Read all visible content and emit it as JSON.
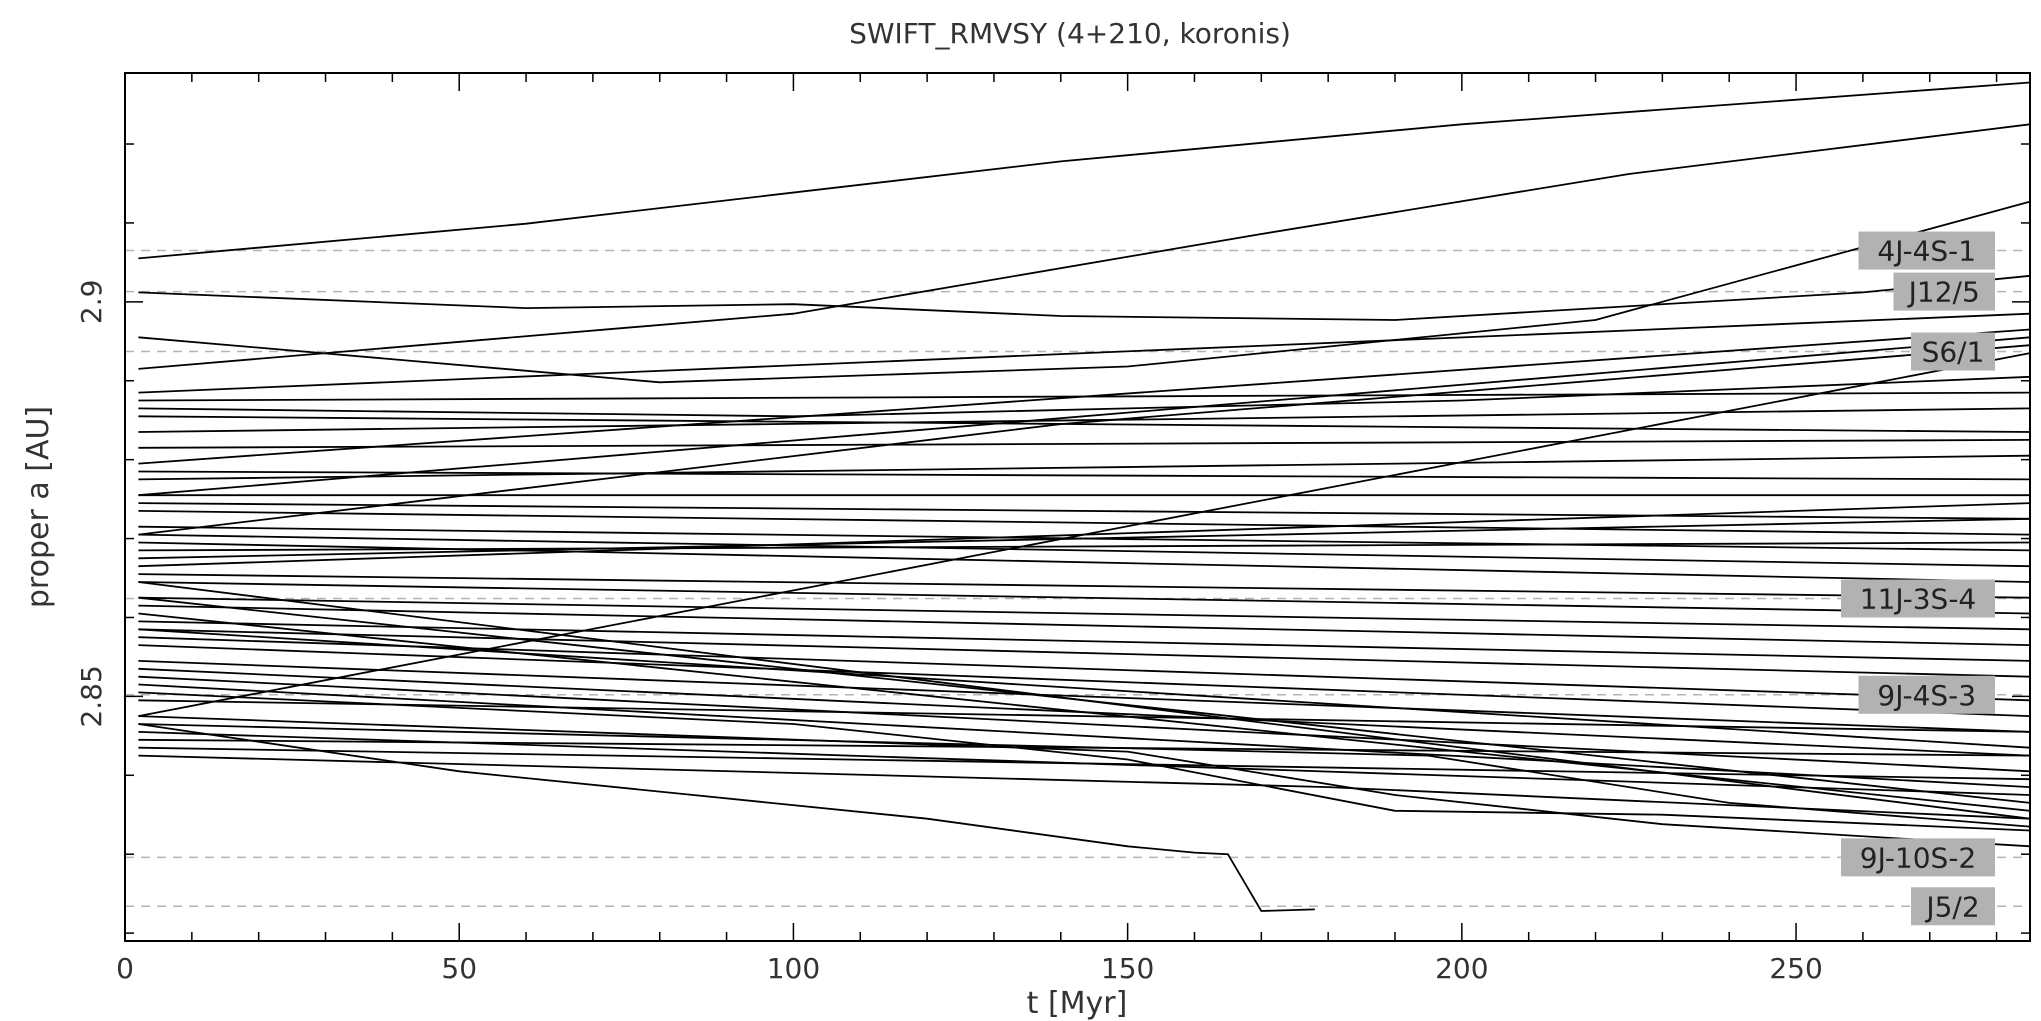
{
  "chart_data": {
    "type": "line",
    "title": "SWIFT_RMVSY (4+210, koronis)",
    "xlabel": "t [Myr]",
    "ylabel": "proper a [AU]",
    "xlim": [
      0,
      285
    ],
    "ylim": [
      2.819,
      2.929
    ],
    "x_ticks": [
      0,
      50,
      100,
      150,
      200,
      250
    ],
    "y_ticks": [
      2.85,
      2.9
    ],
    "y_tick_labels": [
      "2.85",
      "2.9"
    ],
    "grid": false,
    "resonances": [
      {
        "label": "4J-4S-1",
        "a": 2.9065
      },
      {
        "label": "J12/5",
        "a": 2.9013
      },
      {
        "label": "S6/1",
        "a": 2.8937
      },
      {
        "label": "11J-3S-4",
        "a": 2.8624
      },
      {
        "label": "9J-4S-3",
        "a": 2.8502
      },
      {
        "label": "9J-10S-2",
        "a": 2.8296
      },
      {
        "label": "J5/2",
        "a": 2.8234
      }
    ],
    "series": [
      {
        "x": [
          2,
          60,
          140,
          200,
          285
        ],
        "y": [
          2.9055,
          2.9099,
          2.9178,
          2.9225,
          2.9278
        ]
      },
      {
        "x": [
          2,
          100,
          170,
          225,
          285
        ],
        "y": [
          2.8915,
          2.8985,
          2.9086,
          2.9162,
          2.9225
        ]
      },
      {
        "x": [
          2,
          60,
          100,
          140,
          190,
          260,
          285
        ],
        "y": [
          2.9012,
          2.8992,
          2.8997,
          2.8982,
          2.8977,
          2.9012,
          2.9033
        ]
      },
      {
        "x": [
          2,
          80,
          150,
          220,
          285
        ],
        "y": [
          2.8955,
          2.8898,
          2.8918,
          2.8977,
          2.9127
        ]
      },
      {
        "x": [
          2,
          285
        ],
        "y": [
          2.8885,
          2.8985
        ]
      },
      {
        "x": [
          2,
          285
        ],
        "y": [
          2.8795,
          2.8965
        ]
      },
      {
        "x": [
          2,
          285
        ],
        "y": [
          2.8755,
          2.8955
        ]
      },
      {
        "x": [
          2,
          140,
          285
        ],
        "y": [
          2.8705,
          2.8845,
          2.8945
        ]
      },
      {
        "x": [
          2,
          285
        ],
        "y": [
          2.8475,
          2.8935
        ]
      },
      {
        "x": [
          2,
          100,
          200,
          285
        ],
        "y": [
          2.8865,
          2.8855,
          2.8875,
          2.8905
        ]
      },
      {
        "x": [
          2,
          285
        ],
        "y": [
          2.8875,
          2.8885
        ]
      },
      {
        "x": [
          2,
          285
        ],
        "y": [
          2.8835,
          2.8865
        ]
      },
      {
        "x": [
          2,
          285
        ],
        "y": [
          2.8855,
          2.8835
        ]
      },
      {
        "x": [
          2,
          285
        ],
        "y": [
          2.8815,
          2.8825
        ]
      },
      {
        "x": [
          2,
          285
        ],
        "y": [
          2.8775,
          2.8805
        ]
      },
      {
        "x": [
          2,
          285
        ],
        "y": [
          2.8785,
          2.8775
        ]
      },
      {
        "x": [
          2,
          285
        ],
        "y": [
          2.8755,
          2.8755
        ]
      },
      {
        "x": [
          2,
          285
        ],
        "y": [
          2.8745,
          2.8725
        ]
      },
      {
        "x": [
          2,
          285
        ],
        "y": [
          2.8735,
          2.8705
        ]
      },
      {
        "x": [
          2,
          285
        ],
        "y": [
          2.8715,
          2.8685
        ]
      },
      {
        "x": [
          2,
          285
        ],
        "y": [
          2.8705,
          2.8665
        ]
      },
      {
        "x": [
          2,
          285
        ],
        "y": [
          2.8695,
          2.8645
        ]
      },
      {
        "x": [
          2,
          285
        ],
        "y": [
          2.8685,
          2.8695
        ]
      },
      {
        "x": [
          2,
          285
        ],
        "y": [
          2.8675,
          2.8725
        ]
      },
      {
        "x": [
          2,
          285
        ],
        "y": [
          2.8665,
          2.8745
        ]
      },
      {
        "x": [
          2,
          285
        ],
        "y": [
          2.8655,
          2.8625
        ]
      },
      {
        "x": [
          2,
          285
        ],
        "y": [
          2.8645,
          2.8605
        ]
      },
      {
        "x": [
          2,
          285
        ],
        "y": [
          2.8625,
          2.8585
        ]
      },
      {
        "x": [
          2,
          285
        ],
        "y": [
          2.8615,
          2.8565
        ]
      },
      {
        "x": [
          2,
          285
        ],
        "y": [
          2.8595,
          2.8545
        ]
      },
      {
        "x": [
          2,
          285
        ],
        "y": [
          2.8585,
          2.8525
        ]
      },
      {
        "x": [
          2,
          285
        ],
        "y": [
          2.8575,
          2.8495
        ]
      },
      {
        "x": [
          2,
          285
        ],
        "y": [
          2.8565,
          2.8475
        ]
      },
      {
        "x": [
          2,
          285
        ],
        "y": [
          2.8545,
          2.8455
        ]
      },
      {
        "x": [
          2,
          285
        ],
        "y": [
          2.8535,
          2.8425
        ]
      },
      {
        "x": [
          2,
          285
        ],
        "y": [
          2.8525,
          2.8405
        ]
      },
      {
        "x": [
          2,
          285
        ],
        "y": [
          2.8515,
          2.8385
        ]
      },
      {
        "x": [
          2,
          285
        ],
        "y": [
          2.8625,
          2.8365
        ]
      },
      {
        "x": [
          2,
          285
        ],
        "y": [
          2.8605,
          2.8355
        ]
      },
      {
        "x": [
          2,
          285
        ],
        "y": [
          2.8585,
          2.8435
        ]
      },
      {
        "x": [
          2,
          285
        ],
        "y": [
          2.8495,
          2.8455
        ]
      },
      {
        "x": [
          2,
          285
        ],
        "y": [
          2.8455,
          2.8375
        ]
      },
      {
        "x": [
          2,
          285
        ],
        "y": [
          2.8445,
          2.8425
        ]
      },
      {
        "x": [
          2,
          285
        ],
        "y": [
          2.8435,
          2.8395
        ]
      },
      {
        "x": [
          2,
          180,
          285
        ],
        "y": [
          2.8425,
          2.8385,
          2.8345
        ]
      },
      {
        "x": [
          2,
          285
        ],
        "y": [
          2.8645,
          2.8345
        ]
      },
      {
        "x": [
          2,
          195,
          240,
          285
        ],
        "y": [
          2.8465,
          2.8425,
          2.8365,
          2.8335
        ]
      },
      {
        "x": [
          2,
          100,
          150,
          190,
          230,
          285
        ],
        "y": [
          2.8505,
          2.8465,
          2.842,
          2.8355,
          2.835,
          2.833
        ]
      },
      {
        "x": [
          2,
          150,
          190,
          230,
          285
        ],
        "y": [
          2.8475,
          2.843,
          2.8375,
          2.8338,
          2.831
        ]
      },
      {
        "x": [
          2,
          50,
          85,
          120,
          150,
          160,
          165,
          170,
          178
        ],
        "y": [
          2.8465,
          2.8405,
          2.8375,
          2.8345,
          2.831,
          2.8302,
          2.83,
          2.8228,
          2.823
        ]
      }
    ]
  }
}
